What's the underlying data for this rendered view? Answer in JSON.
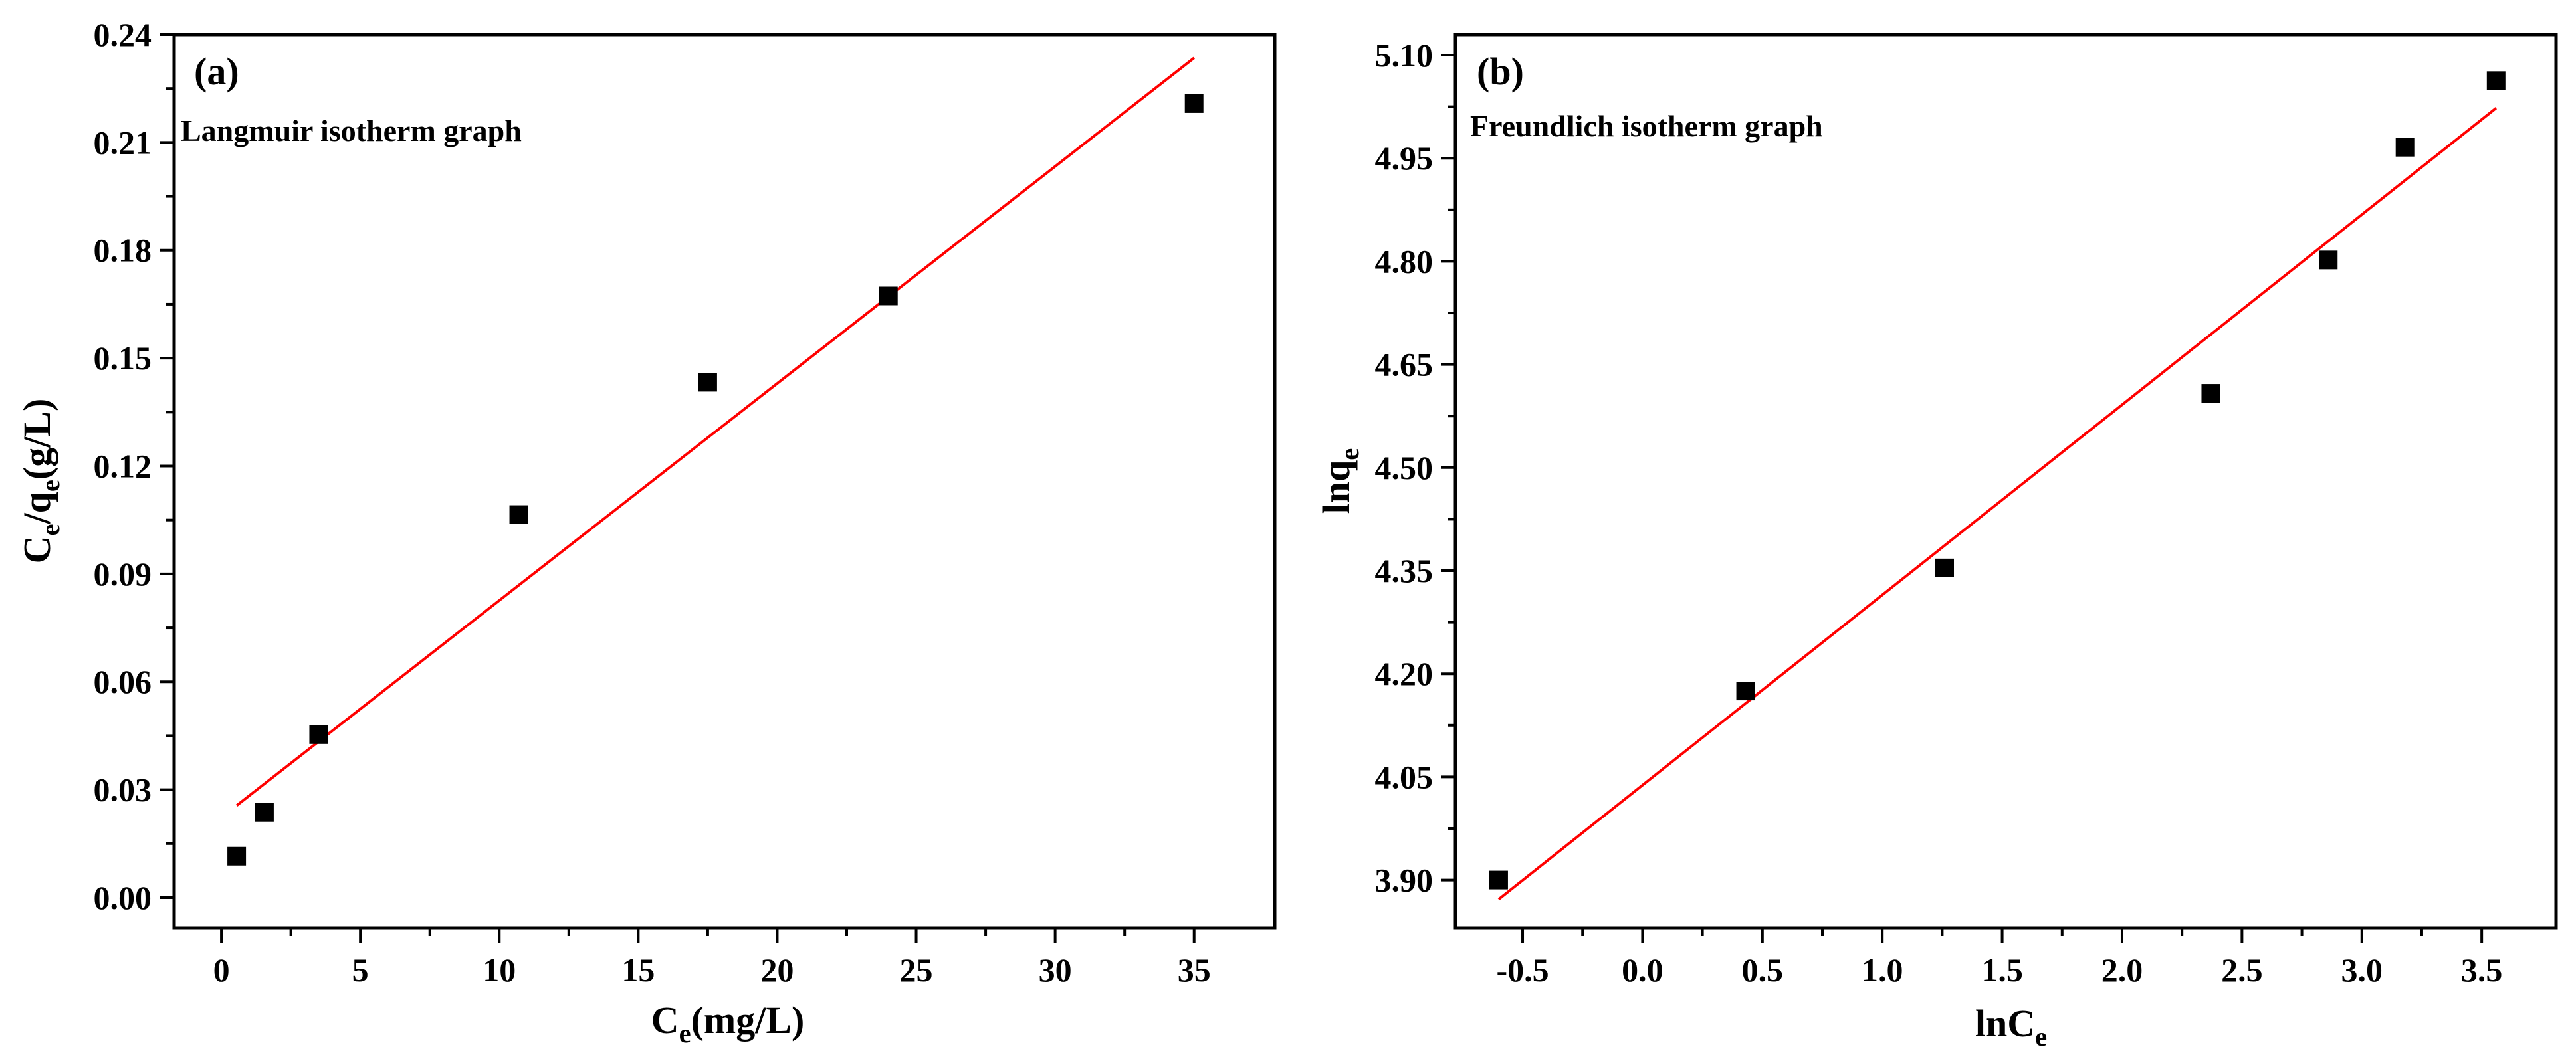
{
  "chart_data": [
    {
      "type": "scatter",
      "panel_label": "(a)",
      "title": "Langmuir isotherm graph",
      "xlabel": {
        "main": "C",
        "sub": "e",
        "rest": "(mg/L)"
      },
      "ylabel": {
        "p1": "C",
        "s1": "e",
        "p2": "/q",
        "s2": "e",
        "p3": "(g/L)"
      },
      "xlim": [
        -1.7,
        37.9
      ],
      "ylim": [
        -0.0085,
        0.24
      ],
      "xticks": [
        0,
        5,
        10,
        15,
        20,
        25,
        30,
        35
      ],
      "xtick_labels": [
        "0",
        "5",
        "10",
        "15",
        "20",
        "25",
        "30",
        "35"
      ],
      "yticks": [
        0.0,
        0.03,
        0.06,
        0.09,
        0.12,
        0.15,
        0.18,
        0.21,
        0.24
      ],
      "ytick_labels": [
        "0.00",
        "0.03",
        "0.06",
        "0.09",
        "0.12",
        "0.15",
        "0.18",
        "0.21",
        "0.24"
      ],
      "points": [
        {
          "x": 0.55,
          "y": 0.0115
        },
        {
          "x": 1.55,
          "y": 0.0237
        },
        {
          "x": 3.5,
          "y": 0.0453
        },
        {
          "x": 10.7,
          "y": 0.1065
        },
        {
          "x": 17.5,
          "y": 0.1433
        },
        {
          "x": 24.0,
          "y": 0.1673
        },
        {
          "x": 35.0,
          "y": 0.2208
        }
      ],
      "fit": {
        "x1": 0.55,
        "y1": 0.0256,
        "x2": 35.0,
        "y2": 0.2335
      },
      "marker_color": "#000000",
      "fit_color": "#ff0000",
      "grid": false
    },
    {
      "type": "scatter",
      "panel_label": "(b)",
      "title": "Freundlich isotherm graph",
      "xlabel": {
        "main": "lnC",
        "sub": "e",
        "rest": ""
      },
      "ylabel": {
        "p1": "lnq",
        "s1": "e",
        "p2": "",
        "s2": "",
        "p3": ""
      },
      "xlim": [
        -0.78,
        3.81
      ],
      "ylim": [
        3.83,
        5.13
      ],
      "xticks": [
        -0.5,
        0.0,
        0.5,
        1.0,
        1.5,
        2.0,
        2.5,
        3.0,
        3.5
      ],
      "xtick_labels": [
        "-0.5",
        "0.0",
        "0.5",
        "1.0",
        "1.5",
        "2.0",
        "2.5",
        "3.0",
        "3.5"
      ],
      "yticks": [
        3.9,
        4.05,
        4.2,
        4.35,
        4.5,
        4.65,
        4.8,
        4.95,
        5.1
      ],
      "ytick_labels": [
        "3.90",
        "4.05",
        "4.20",
        "4.35",
        "4.50",
        "4.65",
        "4.80",
        "4.95",
        "5.10"
      ],
      "points": [
        {
          "x": -0.6,
          "y": 3.9
        },
        {
          "x": 0.43,
          "y": 4.175
        },
        {
          "x": 1.26,
          "y": 4.354
        },
        {
          "x": 2.37,
          "y": 4.608
        },
        {
          "x": 2.86,
          "y": 4.802
        },
        {
          "x": 3.18,
          "y": 4.966
        },
        {
          "x": 3.56,
          "y": 5.063
        }
      ],
      "fit": {
        "x1": -0.6,
        "y1": 3.872,
        "x2": 3.56,
        "y2": 5.023
      },
      "marker_color": "#000000",
      "fit_color": "#ff0000",
      "grid": false
    }
  ]
}
